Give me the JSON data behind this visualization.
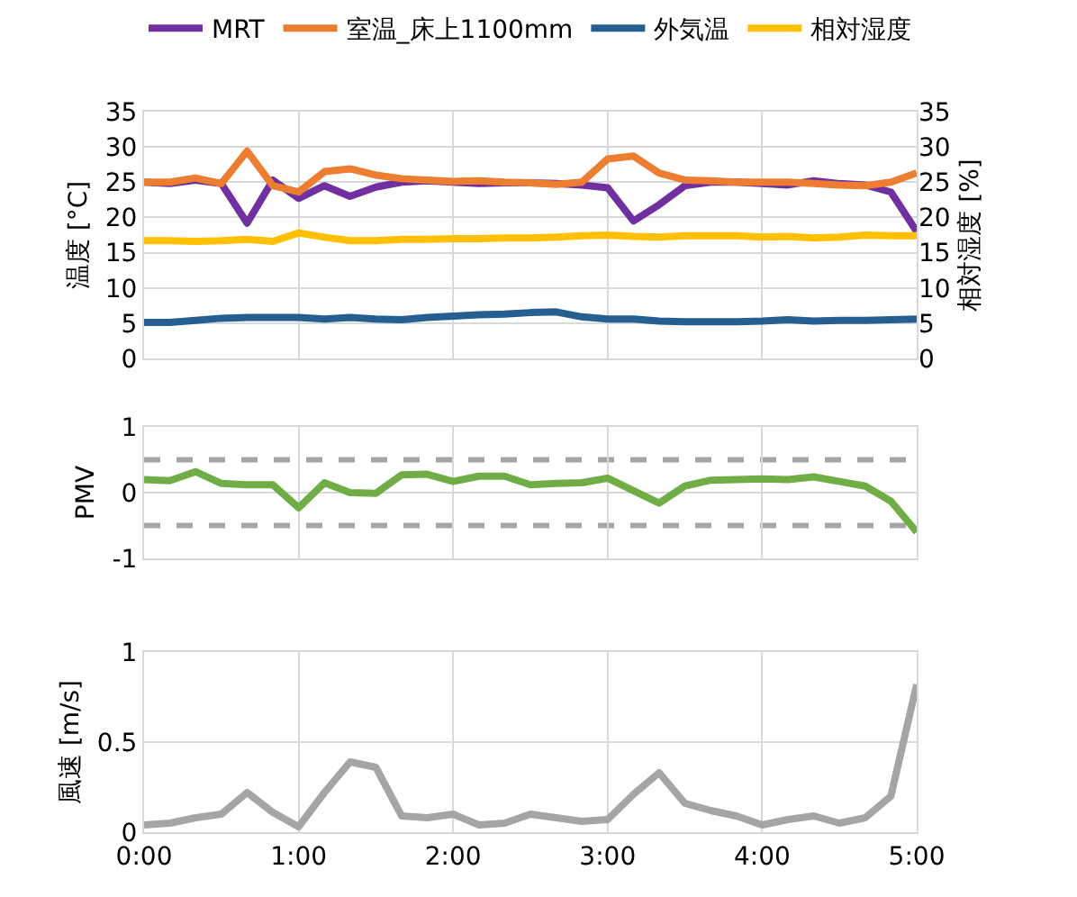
{
  "chart_data": [
    {
      "type": "line",
      "ylabel": "温度 [°C]",
      "y2label": "相対湿度 [%]",
      "legend": "top",
      "grid": true,
      "tick_labels": "y",
      "marker": "none",
      "line_style": "solid",
      "x": [
        0,
        0.167,
        0.333,
        0.5,
        0.667,
        0.833,
        1,
        1.167,
        1.333,
        1.5,
        1.667,
        1.833,
        2,
        2.167,
        2.333,
        2.5,
        2.667,
        2.833,
        3,
        3.167,
        3.333,
        3.5,
        3.667,
        3.833,
        4,
        4.167,
        4.333,
        4.5,
        4.667,
        4.833,
        5
      ],
      "xlim": [
        0,
        5
      ],
      "xticks": [
        {
          "value": 0,
          "label": null
        },
        {
          "value": 1,
          "label": null
        },
        {
          "value": 2,
          "label": null
        },
        {
          "value": 3,
          "label": null
        },
        {
          "value": 4,
          "label": null
        },
        {
          "value": 5,
          "label": null
        }
      ],
      "ylim": [
        0,
        35
      ],
      "yticks": [
        0,
        5,
        10,
        15,
        20,
        25,
        30,
        35
      ],
      "y2lim": [
        0,
        35
      ],
      "y2ticks": [
        0,
        5,
        10,
        15,
        20,
        25,
        30,
        35
      ],
      "series": [
        {
          "name": "MRT",
          "color": "#7030a0",
          "values": [
            25,
            24.8,
            25.3,
            24.8,
            19.2,
            25.3,
            22.7,
            24.5,
            23,
            24.3,
            25,
            25.2,
            25,
            24.8,
            24.9,
            24.9,
            24.8,
            24.6,
            24.2,
            19.5,
            21.8,
            24.5,
            25,
            25,
            24.8,
            24.6,
            25.2,
            24.8,
            24.6,
            23.6,
            18
          ]
        },
        {
          "name": "室温_床上1100mm",
          "color": "#ed7d31",
          "values": [
            25,
            25,
            25.6,
            24.8,
            29.4,
            24.5,
            23.6,
            26.5,
            26.9,
            26,
            25.5,
            25.3,
            25.1,
            25.2,
            25,
            24.9,
            24.7,
            25,
            28.3,
            28.7,
            26.3,
            25.3,
            25.2,
            25,
            25,
            25,
            24.8,
            24.6,
            24.5,
            25,
            26.3
          ]
        },
        {
          "name": "外気温",
          "color": "#255e91",
          "values": [
            5.1,
            5.1,
            5.4,
            5.7,
            5.8,
            5.8,
            5.8,
            5.6,
            5.8,
            5.6,
            5.5,
            5.8,
            6,
            6.2,
            6.3,
            6.5,
            6.6,
            5.9,
            5.6,
            5.6,
            5.3,
            5.2,
            5.2,
            5.2,
            5.3,
            5.5,
            5.3,
            5.4,
            5.4,
            5.5,
            5.6
          ]
        },
        {
          "name": "相対湿度",
          "color": "#ffc000",
          "axis": "y2",
          "values": [
            16.7,
            16.7,
            16.6,
            16.7,
            16.9,
            16.6,
            17.8,
            17.2,
            16.7,
            16.7,
            16.9,
            16.9,
            17,
            17,
            17.1,
            17.1,
            17.2,
            17.4,
            17.5,
            17.3,
            17.2,
            17.4,
            17.4,
            17.4,
            17.2,
            17.3,
            17.1,
            17.2,
            17.5,
            17.4,
            17.4
          ]
        }
      ]
    },
    {
      "type": "line",
      "ylabel": "PMV",
      "grid": true,
      "tick_labels": "y",
      "marker": "none",
      "line_style": "solid",
      "x": [
        0,
        0.167,
        0.333,
        0.5,
        0.667,
        0.833,
        1,
        1.167,
        1.333,
        1.5,
        1.667,
        1.833,
        2,
        2.167,
        2.333,
        2.5,
        2.667,
        2.833,
        3,
        3.167,
        3.333,
        3.5,
        3.667,
        3.833,
        4,
        4.167,
        4.333,
        4.5,
        4.667,
        4.833,
        5
      ],
      "xlim": [
        0,
        5
      ],
      "xticks": [
        {
          "value": 0,
          "label": null
        },
        {
          "value": 1,
          "label": null
        },
        {
          "value": 2,
          "label": null
        },
        {
          "value": 3,
          "label": null
        },
        {
          "value": 4,
          "label": null
        },
        {
          "value": 5,
          "label": null
        }
      ],
      "ylim": [
        -1,
        1
      ],
      "yticks": [
        -1,
        0,
        1
      ],
      "ref_lines": [
        {
          "axis": "y",
          "value": 0.5,
          "color": "#a5a5a5",
          "line_style": "dashed"
        },
        {
          "axis": "y",
          "value": -0.5,
          "color": "#a5a5a5",
          "line_style": "dashed"
        }
      ],
      "series": [
        {
          "color": "#70ad47",
          "values": [
            0.2,
            0.18,
            0.32,
            0.14,
            0.12,
            0.12,
            -0.23,
            0.15,
            0.0,
            -0.01,
            0.27,
            0.28,
            0.17,
            0.25,
            0.25,
            0.12,
            0.14,
            0.15,
            0.22,
            0.03,
            -0.16,
            0.1,
            0.19,
            0.2,
            0.21,
            0.2,
            0.24,
            0.17,
            0.1,
            -0.13,
            -0.6
          ]
        }
      ]
    },
    {
      "type": "line",
      "ylabel": "風速 [m/s]",
      "grid": true,
      "marker": "none",
      "line_style": "solid",
      "x": [
        0,
        0.167,
        0.333,
        0.5,
        0.667,
        0.833,
        1,
        1.167,
        1.333,
        1.5,
        1.667,
        1.833,
        2,
        2.167,
        2.333,
        2.5,
        2.667,
        2.833,
        3,
        3.167,
        3.333,
        3.5,
        3.667,
        3.833,
        4,
        4.167,
        4.333,
        4.5,
        4.667,
        4.833,
        5
      ],
      "xlim": [
        0,
        5
      ],
      "xticks": [
        {
          "value": 0,
          "label": "0:00"
        },
        {
          "value": 1,
          "label": "1:00"
        },
        {
          "value": 2,
          "label": "2:00"
        },
        {
          "value": 3,
          "label": "3:00"
        },
        {
          "value": 4,
          "label": "4:00"
        },
        {
          "value": 5,
          "label": "5:00"
        }
      ],
      "ylim": [
        0,
        1
      ],
      "yticks": [
        0,
        0.5,
        1
      ],
      "series": [
        {
          "color": "#a5a5a5",
          "values": [
            0.04,
            0.05,
            0.08,
            0.1,
            0.22,
            0.11,
            0.03,
            0.22,
            0.39,
            0.36,
            0.09,
            0.08,
            0.1,
            0.04,
            0.05,
            0.1,
            0.08,
            0.06,
            0.07,
            0.21,
            0.33,
            0.16,
            0.12,
            0.09,
            0.04,
            0.07,
            0.09,
            0.05,
            0.08,
            0.2,
            0.82
          ]
        }
      ]
    }
  ]
}
